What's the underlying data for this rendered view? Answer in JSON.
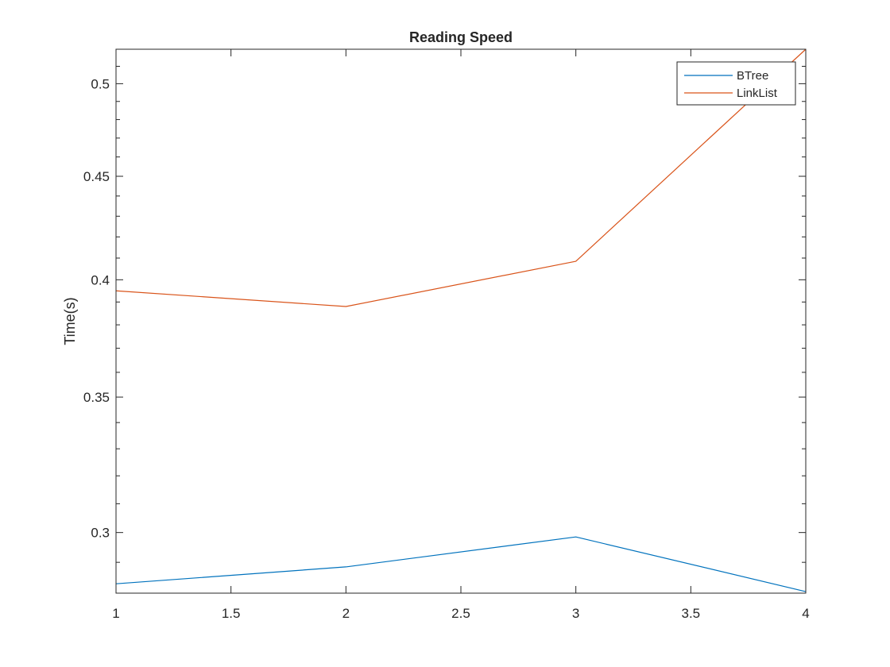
{
  "chart_data": {
    "type": "line",
    "title": "Reading Speed",
    "xlabel": "",
    "ylabel": "Time(s)",
    "xlim": [
      1,
      4
    ],
    "ylim": [
      0.28,
      0.52
    ],
    "scale": "log",
    "grid": false,
    "legend_position": "top-right",
    "x": [
      1,
      2,
      3,
      4
    ],
    "x_ticks": [
      1,
      1.5,
      2,
      2.5,
      3,
      3.5,
      4
    ],
    "x_tick_labels": [
      "1",
      "1.5",
      "2",
      "2.5",
      "3",
      "3.5",
      "4"
    ],
    "y_ticks": [
      0.3,
      0.35,
      0.4,
      0.45,
      0.5
    ],
    "y_tick_labels": [
      "0.3",
      "0.35",
      "0.4",
      "0.45",
      "0.5"
    ],
    "series": [
      {
        "name": "BTree",
        "color": "#0072BD",
        "values": [
          0.283,
          0.2885,
          0.2985,
          0.2805
        ]
      },
      {
        "name": "LinkList",
        "color": "#D95319",
        "values": [
          0.395,
          0.388,
          0.4085,
          0.52
        ]
      }
    ]
  }
}
